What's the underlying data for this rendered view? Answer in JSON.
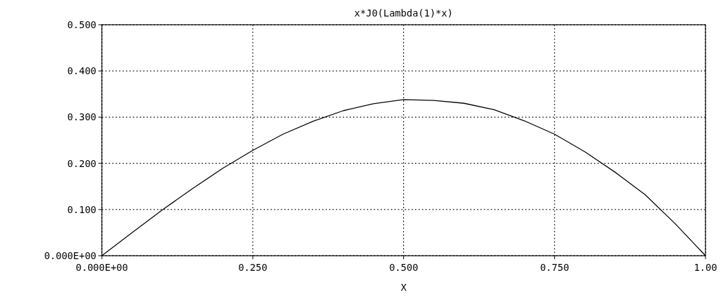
{
  "chart_data": {
    "type": "line",
    "title": "x*J0(Lambda(1)*x)",
    "xlabel": "X",
    "x": [
      0,
      0.05,
      0.1,
      0.15,
      0.2,
      0.25,
      0.3,
      0.35,
      0.4,
      0.45,
      0.5,
      0.55,
      0.6,
      0.65,
      0.7,
      0.75,
      0.8,
      0.85,
      0.9,
      0.95,
      1.0
    ],
    "series": [
      {
        "color": "#000000",
        "values": [
          0,
          0.05,
          0.099,
          0.145,
          0.189,
          0.228,
          0.263,
          0.291,
          0.314,
          0.329,
          0.338,
          0.336,
          0.33,
          0.316,
          0.292,
          0.263,
          0.225,
          0.181,
          0.132,
          0.069,
          0
        ]
      }
    ],
    "xlim": [
      0,
      1
    ],
    "xticks": [
      {
        "value": 0,
        "label": "0.000E+00"
      },
      {
        "value": 0.25,
        "label": "0.250"
      },
      {
        "value": 0.5,
        "label": "0.500"
      },
      {
        "value": 0.75,
        "label": "0.750"
      },
      {
        "value": 1,
        "label": "1.00"
      }
    ],
    "ylim": [
      0,
      0.5
    ],
    "yticks": [
      {
        "value": 0,
        "label": "0.000E+00"
      },
      {
        "value": 0.1,
        "label": "0.100"
      },
      {
        "value": 0.2,
        "label": "0.200"
      },
      {
        "value": 0.3,
        "label": "0.300"
      },
      {
        "value": 0.4,
        "label": "0.400"
      },
      {
        "value": 0.5,
        "label": "0.500"
      }
    ],
    "grid": true,
    "marker": "none",
    "line_style": "solid"
  }
}
